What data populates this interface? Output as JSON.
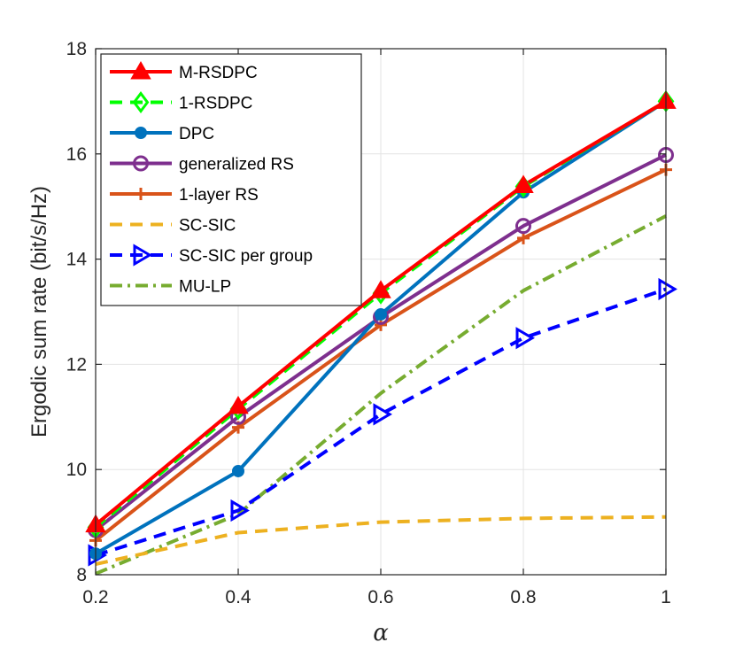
{
  "chart_data": {
    "type": "line",
    "title": "",
    "xlabel": "α",
    "ylabel": "Ergodic sum rate (bit/s/Hz)",
    "xlim": [
      0.2,
      1
    ],
    "ylim": [
      8,
      18
    ],
    "xticks": [
      0.2,
      0.4,
      0.6,
      0.8,
      1
    ],
    "xtick_labels": [
      "0.2",
      "0.4",
      "0.6",
      "0.8",
      "1"
    ],
    "yticks": [
      8,
      10,
      12,
      14,
      16,
      18
    ],
    "ytick_labels": [
      "8",
      "10",
      "12",
      "14",
      "16",
      "18"
    ],
    "grid": true,
    "legend_position": "top-left",
    "x": [
      0.2,
      0.4,
      0.6,
      0.8,
      1
    ],
    "series": [
      {
        "name": "M-RSDPC",
        "values": [
          8.95,
          11.2,
          13.4,
          15.4,
          17.0
        ],
        "color": "#ff0000",
        "dash": "solid",
        "marker": "triangle-up"
      },
      {
        "name": "1-RSDPC",
        "values": [
          8.9,
          11.15,
          13.35,
          15.38,
          17.0
        ],
        "color": "#00ff00",
        "dash": "dashed",
        "marker": "diamond"
      },
      {
        "name": "DPC",
        "values": [
          8.4,
          9.97,
          12.95,
          15.27,
          17.0
        ],
        "color": "#0072bd",
        "dash": "solid",
        "marker": "filled-circle"
      },
      {
        "name": "generalized RS",
        "values": [
          8.85,
          11.0,
          12.9,
          14.63,
          15.98
        ],
        "color": "#7e2f8e",
        "dash": "solid",
        "marker": "open-circle"
      },
      {
        "name": "1-layer RS",
        "values": [
          8.65,
          10.8,
          12.75,
          14.4,
          15.7
        ],
        "color": "#d95319",
        "dash": "solid",
        "marker": "plus"
      },
      {
        "name": "SC-SIC",
        "values": [
          8.2,
          8.8,
          9.0,
          9.07,
          9.1
        ],
        "color": "#edb120",
        "dash": "dashed",
        "marker": "none"
      },
      {
        "name": "SC-SIC per group",
        "values": [
          8.37,
          9.22,
          11.05,
          12.5,
          13.43
        ],
        "color": "#0000ff",
        "dash": "dashed",
        "marker": "triangle-right"
      },
      {
        "name": "MU-LP",
        "values": [
          8.02,
          9.15,
          11.45,
          13.4,
          14.82
        ],
        "color": "#77ac30",
        "dash": "dashdot",
        "marker": "none"
      }
    ]
  }
}
